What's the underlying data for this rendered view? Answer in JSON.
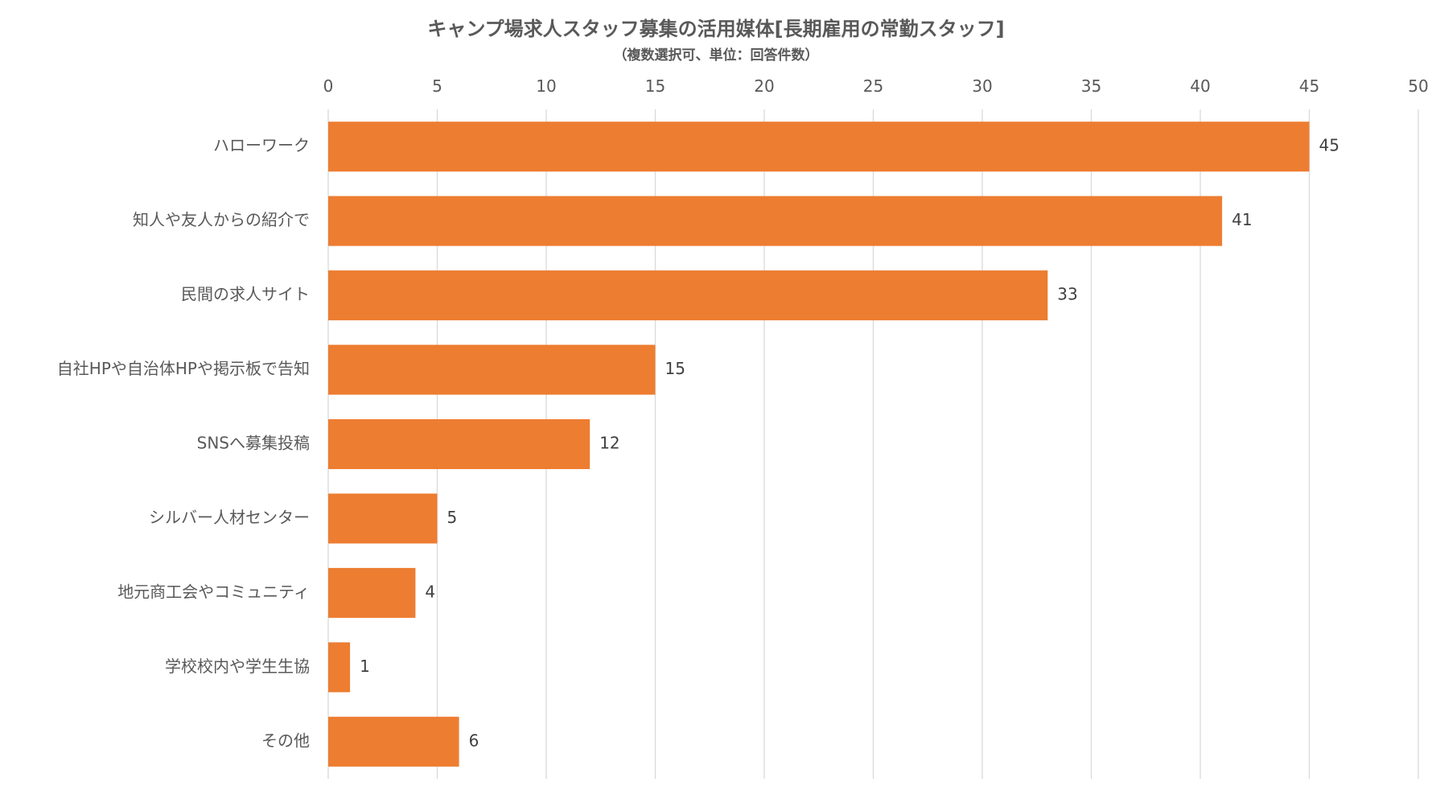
{
  "chart_data": {
    "type": "bar",
    "orientation": "horizontal",
    "title": "キャンプ場求人スタッフ募集の活用媒体[長期雇用の常勤スタッフ]",
    "subtitle": "（複数選択可、単位：回答件数）",
    "xlabel": "",
    "ylabel": "",
    "categories": [
      "ハローワーク",
      "知人や友人からの紹介で",
      "民間の求人サイト",
      "自社HPや自治体HPや掲示板で告知",
      "SNSへ募集投稿",
      "シルバー人材センター",
      "地元商工会やコミュニティ",
      "学校校内や学生生協",
      "その他"
    ],
    "values": [
      45,
      41,
      33,
      15,
      12,
      5,
      4,
      1,
      6
    ],
    "xlim": [
      0,
      50
    ],
    "ticks": [
      "0",
      "5",
      "10",
      "15",
      "20",
      "25",
      "30",
      "35",
      "40",
      "45",
      "50"
    ],
    "tick_values": [
      0,
      5,
      10,
      15,
      20,
      25,
      30,
      35,
      40,
      45,
      50
    ],
    "axis_position": "top",
    "grid": true,
    "legend": "none",
    "data_labels": true,
    "colors": {
      "bar": "#ED7D31",
      "grid": "#D9D9D9",
      "text": "#595959",
      "label": "#404040"
    }
  }
}
